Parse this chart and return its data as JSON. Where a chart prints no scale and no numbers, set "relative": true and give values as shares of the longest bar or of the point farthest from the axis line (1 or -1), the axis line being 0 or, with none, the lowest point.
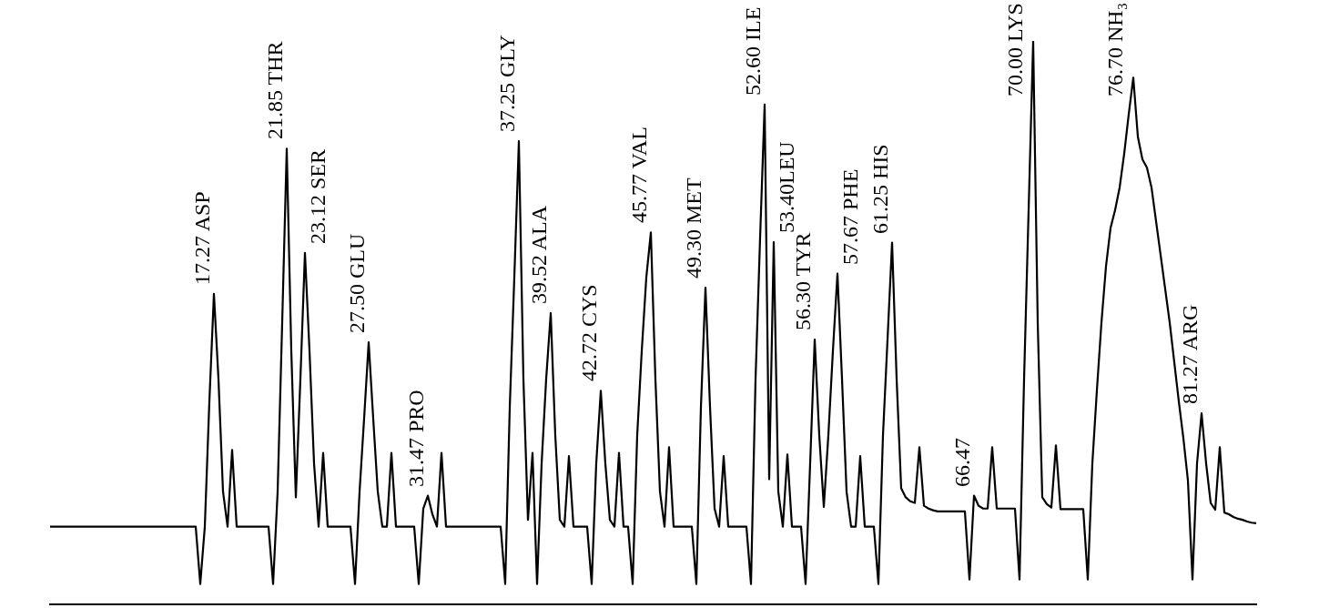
{
  "chart_data": {
    "type": "line",
    "relative": true,
    "tick_labels": false,
    "legend": false,
    "categories": [
      null,
      null,
      null,
      null,
      null,
      null,
      null,
      null,
      null,
      null,
      null,
      null,
      null,
      null,
      null,
      null,
      null,
      null,
      null,
      null,
      null,
      null,
      null,
      null,
      null,
      null,
      null,
      null,
      null,
      null,
      null,
      null,
      null,
      null,
      null,
      null,
      null,
      null,
      null,
      null,
      null,
      null,
      null,
      null,
      null,
      null,
      null,
      null,
      null,
      null,
      null,
      null,
      null,
      null,
      null,
      null,
      null,
      null,
      null,
      null,
      null,
      null,
      null,
      null,
      null,
      null,
      null,
      null,
      null,
      null,
      null,
      null,
      null,
      null,
      null,
      null,
      null,
      null,
      null,
      null,
      null,
      null,
      null,
      null,
      null,
      null,
      null,
      null,
      null,
      null,
      null,
      null,
      null,
      null,
      null,
      null,
      null,
      null,
      null,
      null,
      null,
      null,
      null,
      null,
      null,
      null,
      null,
      null,
      null,
      null,
      null,
      null,
      null,
      null,
      null,
      null,
      null,
      null,
      null,
      null,
      null,
      null,
      null,
      null,
      null,
      null,
      null,
      null,
      null,
      null,
      null,
      null,
      null,
      null,
      null,
      null,
      null,
      null,
      null,
      null,
      null,
      null,
      null,
      null,
      null,
      null,
      null,
      null,
      null,
      null,
      null,
      null,
      null,
      null,
      null,
      null,
      null,
      null,
      null,
      null,
      null,
      null,
      null,
      null,
      null,
      null,
      null,
      null,
      null,
      null,
      null,
      null,
      null,
      null,
      null,
      null,
      null,
      null,
      null,
      null,
      null,
      null,
      null,
      null,
      null,
      null,
      null,
      null,
      null,
      null,
      null,
      null,
      null,
      null,
      null,
      null,
      null,
      null,
      null,
      null,
      null,
      null,
      null,
      null,
      null,
      null,
      null,
      null,
      null,
      null,
      null,
      null,
      null,
      null,
      null,
      null,
      null,
      null,
      null,
      null,
      null,
      null,
      null,
      null,
      null,
      null,
      null,
      null,
      null,
      null,
      null,
      null,
      null,
      null,
      null,
      null,
      null,
      null,
      null,
      null,
      null,
      null,
      null,
      null,
      null,
      null,
      null,
      null,
      null,
      null,
      null,
      null,
      null,
      null,
      null,
      null,
      null,
      null,
      null,
      null,
      null,
      null,
      null,
      null,
      null,
      null
    ],
    "series": [
      {
        "color": "#000000",
        "values": [
          0.138,
          0.138,
          0.138,
          0.138,
          0.138,
          0.138,
          0.138,
          0.138,
          0.138,
          0.138,
          0.138,
          0.138,
          0.138,
          0.138,
          0.138,
          0.138,
          0.138,
          0.138,
          0.138,
          0.138,
          0.138,
          0.138,
          0.138,
          0.138,
          0.138,
          0.138,
          0.138,
          0.138,
          0.138,
          0.138,
          0.138,
          0.138,
          0.138,
          0.036,
          0.138,
          0.36,
          0.551,
          0.4,
          0.2,
          0.138,
          0.274,
          0.138,
          0.138,
          0.138,
          0.138,
          0.138,
          0.138,
          0.138,
          0.138,
          0.036,
          0.2,
          0.5,
          0.809,
          0.45,
          0.19,
          0.4,
          0.624,
          0.45,
          0.25,
          0.138,
          0.269,
          0.138,
          0.138,
          0.138,
          0.138,
          0.138,
          0.138,
          0.036,
          0.2,
          0.33,
          0.465,
          0.33,
          0.2,
          0.138,
          0.138,
          0.269,
          0.138,
          0.138,
          0.138,
          0.138,
          0.138,
          0.036,
          0.17,
          0.193,
          0.16,
          0.138,
          0.269,
          0.138,
          0.138,
          0.138,
          0.138,
          0.138,
          0.138,
          0.138,
          0.138,
          0.138,
          0.138,
          0.138,
          0.138,
          0.138,
          0.036,
          0.35,
          0.58,
          0.822,
          0.4,
          0.15,
          0.269,
          0.036,
          0.25,
          0.4,
          0.517,
          0.3,
          0.15,
          0.138,
          0.263,
          0.138,
          0.138,
          0.138,
          0.138,
          0.036,
          0.25,
          0.379,
          0.25,
          0.15,
          0.138,
          0.269,
          0.138,
          0.138,
          0.036,
          0.3,
          0.45,
          0.58,
          0.66,
          0.4,
          0.2,
          0.138,
          0.279,
          0.138,
          0.138,
          0.138,
          0.138,
          0.138,
          0.036,
          0.35,
          0.562,
          0.35,
          0.17,
          0.138,
          0.263,
          0.138,
          0.138,
          0.138,
          0.138,
          0.138,
          0.036,
          0.4,
          0.65,
          0.887,
          0.222,
          0.643,
          0.2,
          0.138,
          0.266,
          0.138,
          0.138,
          0.138,
          0.036,
          0.25,
          0.47,
          0.3,
          0.173,
          0.3,
          0.45,
          0.587,
          0.4,
          0.2,
          0.138,
          0.138,
          0.263,
          0.138,
          0.138,
          0.138,
          0.036,
          0.3,
          0.47,
          0.642,
          0.4,
          0.206,
          0.19,
          0.183,
          0.18,
          0.279,
          0.175,
          0.17,
          0.167,
          0.165,
          0.165,
          0.165,
          0.165,
          0.165,
          0.165,
          0.165,
          0.044,
          0.193,
          0.175,
          0.17,
          0.17,
          0.279,
          0.17,
          0.17,
          0.17,
          0.17,
          0.17,
          0.044,
          0.4,
          0.7,
          1,
          0.5,
          0.19,
          0.178,
          0.172,
          0.282,
          0.169,
          0.169,
          0.169,
          0.169,
          0.169,
          0.169,
          0.044,
          0.25,
          0.38,
          0.5,
          0.6,
          0.668,
          0.7,
          0.74,
          0.8,
          0.87,
          0.935,
          0.83,
          0.79,
          0.775,
          0.74,
          0.68,
          0.62,
          0.56,
          0.5,
          0.43,
          0.36,
          0.295,
          0.22,
          0.044,
          0.25,
          0.339,
          0.25,
          0.18,
          0.168,
          0.279,
          0.163,
          0.16,
          0.155,
          0.152,
          0.15,
          0.147,
          0.145,
          0.144
        ]
      }
    ],
    "annotations": [
      "17.27 ASP",
      "21.85 THR",
      "23.12 SER",
      "27.50 GLU",
      "31.47 PRO",
      "37.25 GLY",
      "39.52 ALA",
      "42.72 CYS",
      "45.77 VAL",
      "49.30 MET",
      "52.60 ILE",
      "53.40LEU",
      "56.30 TYR",
      "57.67 PHE",
      "61.25 HIS",
      "66.47",
      "70.00 LYS",
      "76.70 NH₃",
      "81.27 ARG"
    ]
  }
}
